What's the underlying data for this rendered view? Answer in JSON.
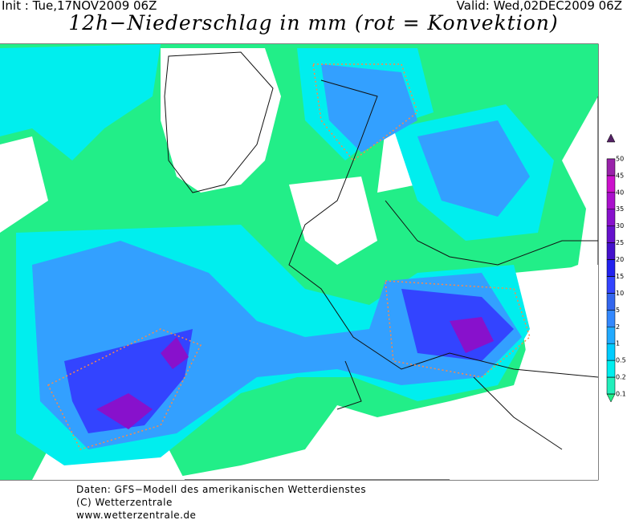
{
  "header": {
    "init": "Init : Tue,17NOV2009 06Z",
    "valid": "Valid: Wed,02DEC2009 06Z",
    "title": "12h−Niederschlag in mm (rot = Konvektion)"
  },
  "colorbar": {
    "levels": [
      0.1,
      0.2,
      0.5,
      1,
      2,
      5,
      10,
      15,
      20,
      25,
      30,
      35,
      40,
      45,
      50
    ],
    "colors": [
      "#22ee88",
      "#22eebb",
      "#00eeee",
      "#00ccff",
      "#22aaff",
      "#3388ff",
      "#3366ee",
      "#3344ff",
      "#2222ee",
      "#4411cc",
      "#6611cc",
      "#8811cc",
      "#aa11cc",
      "#cc11cc",
      "#9922aa",
      "#552266"
    ]
  },
  "footer": {
    "lines": [
      "Daten: GFS−Modell des amerikanischen Wetterdienstes",
      "(C) Wetterzentrale",
      "www.wetterzentrale.de"
    ]
  }
}
